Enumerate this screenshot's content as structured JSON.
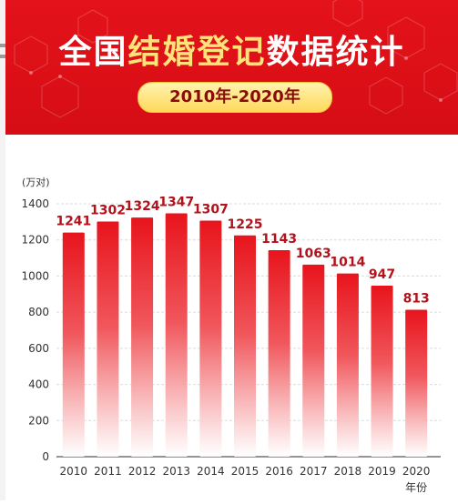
{
  "header": {
    "title_part1": "全国",
    "title_part2": "结婚登记",
    "title_part3": "数据统计",
    "subtitle": "2010年-2020年"
  },
  "colors": {
    "header_red": "#e4121a",
    "title_yellow": "#ffe27a",
    "bar_top": "#e8141c",
    "value_label": "#b3121a"
  },
  "chart_data": {
    "type": "bar",
    "title": "",
    "ylabel": "(万对)",
    "xlabel": "年份",
    "categories": [
      "2010",
      "2011",
      "2012",
      "2013",
      "2014",
      "2015",
      "2016",
      "2017",
      "2018",
      "2019",
      "2020"
    ],
    "values": [
      1241,
      1302,
      1324,
      1347,
      1307,
      1225,
      1143,
      1063,
      1014,
      947,
      813
    ],
    "value_labels": [
      "1241",
      "1302",
      "1324",
      "1347",
      "1307",
      "1225",
      "1143",
      "1063",
      "1014",
      "947",
      "813"
    ],
    "ylim": [
      0,
      1400
    ],
    "yticks": [
      0,
      200,
      400,
      600,
      800,
      1000,
      1200,
      1400
    ],
    "ytick_labels": [
      "0",
      "200",
      "400",
      "600",
      "800",
      "1000",
      "1200",
      "1400"
    ],
    "last_tick_suffix": "年份",
    "grid": true
  }
}
